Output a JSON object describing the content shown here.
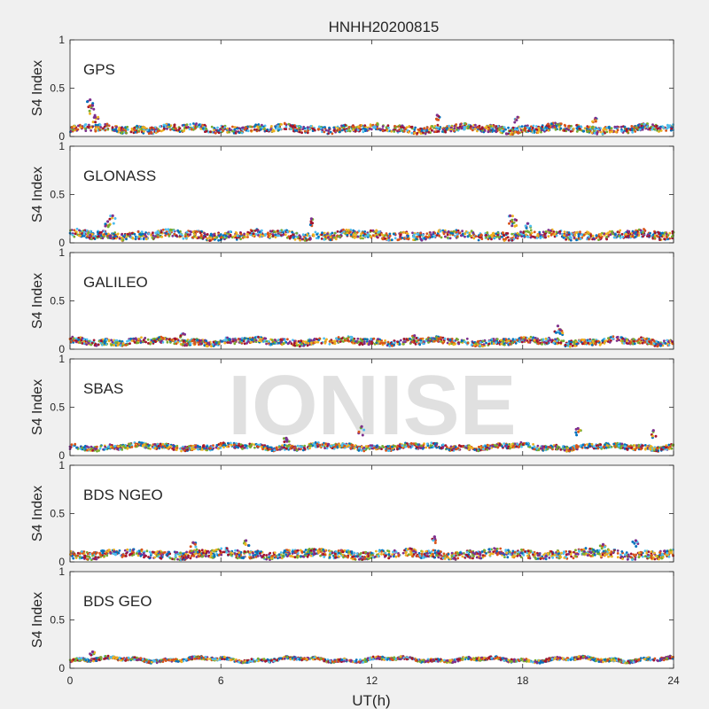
{
  "figure": {
    "title": "HNHH20200815",
    "xlabel": "UT(h)",
    "xticks": [
      "0",
      "6",
      "12",
      "18",
      "24"
    ],
    "watermark": "IONISE"
  },
  "colors": {
    "background": "#f0f0f0",
    "axes_face": "#ffffff",
    "axes_edge": "#262626",
    "series": [
      "#0072BD",
      "#D95319",
      "#EDB120",
      "#7E2F8E",
      "#77AC30",
      "#4DBEEE",
      "#A2142F"
    ]
  },
  "chart_data": [
    {
      "type": "scatter",
      "panel": "GPS",
      "ylabel": "S4 Index",
      "xlim": [
        0,
        24
      ],
      "ylim": [
        0,
        1
      ],
      "yticks": [
        "0",
        "0.5",
        "1"
      ],
      "grid": false,
      "baseline": 0.08,
      "noise": 0.035,
      "spikes": [
        {
          "x": 0.8,
          "y": 0.38
        },
        {
          "x": 0.9,
          "y": 0.32
        },
        {
          "x": 1.0,
          "y": 0.2
        },
        {
          "x": 14.6,
          "y": 0.22
        },
        {
          "x": 17.8,
          "y": 0.2
        },
        {
          "x": 20.9,
          "y": 0.19
        }
      ]
    },
    {
      "type": "scatter",
      "panel": "GLONASS",
      "ylabel": "S4 Index",
      "xlim": [
        0,
        24
      ],
      "ylim": [
        0,
        1
      ],
      "yticks": [
        "0",
        "0.5",
        "1"
      ],
      "grid": false,
      "baseline": 0.08,
      "noise": 0.04,
      "spikes": [
        {
          "x": 1.7,
          "y": 0.28
        },
        {
          "x": 1.5,
          "y": 0.22
        },
        {
          "x": 9.6,
          "y": 0.25
        },
        {
          "x": 17.5,
          "y": 0.28
        },
        {
          "x": 17.7,
          "y": 0.24
        },
        {
          "x": 18.2,
          "y": 0.2
        }
      ]
    },
    {
      "type": "scatter",
      "panel": "GALILEO",
      "ylabel": "S4 Index",
      "xlim": [
        0,
        24
      ],
      "ylim": [
        0,
        1
      ],
      "yticks": [
        "0",
        "0.5",
        "1"
      ],
      "grid": false,
      "baseline": 0.08,
      "noise": 0.03,
      "spikes": [
        {
          "x": 19.4,
          "y": 0.24
        },
        {
          "x": 19.5,
          "y": 0.2
        },
        {
          "x": 4.5,
          "y": 0.16
        },
        {
          "x": 13.7,
          "y": 0.14
        }
      ]
    },
    {
      "type": "scatter",
      "panel": "SBAS",
      "ylabel": "S4 Index",
      "xlim": [
        0,
        24
      ],
      "ylim": [
        0,
        1
      ],
      "yticks": [
        "0",
        "0.5",
        "1"
      ],
      "grid": false,
      "baseline": 0.09,
      "noise": 0.025,
      "spikes": [
        {
          "x": 11.6,
          "y": 0.3
        },
        {
          "x": 20.2,
          "y": 0.28
        },
        {
          "x": 23.2,
          "y": 0.26
        },
        {
          "x": 8.6,
          "y": 0.18
        }
      ]
    },
    {
      "type": "scatter",
      "panel": "BDS NGEO",
      "ylabel": "S4 Index",
      "xlim": [
        0,
        24
      ],
      "ylim": [
        0,
        1
      ],
      "yticks": [
        "0",
        "0.5",
        "1"
      ],
      "grid": false,
      "baseline": 0.08,
      "noise": 0.04,
      "spikes": [
        {
          "x": 14.5,
          "y": 0.26
        },
        {
          "x": 4.9,
          "y": 0.2
        },
        {
          "x": 7.0,
          "y": 0.22
        },
        {
          "x": 22.5,
          "y": 0.22
        },
        {
          "x": 21.2,
          "y": 0.18
        }
      ]
    },
    {
      "type": "scatter",
      "panel": "BDS GEO",
      "ylabel": "S4 Index",
      "xlim": [
        0,
        24
      ],
      "ylim": [
        0,
        1
      ],
      "yticks": [
        "0",
        "0.5",
        "1"
      ],
      "grid": false,
      "baseline": 0.09,
      "noise": 0.015,
      "spikes": [
        {
          "x": 0.9,
          "y": 0.17
        }
      ]
    }
  ]
}
